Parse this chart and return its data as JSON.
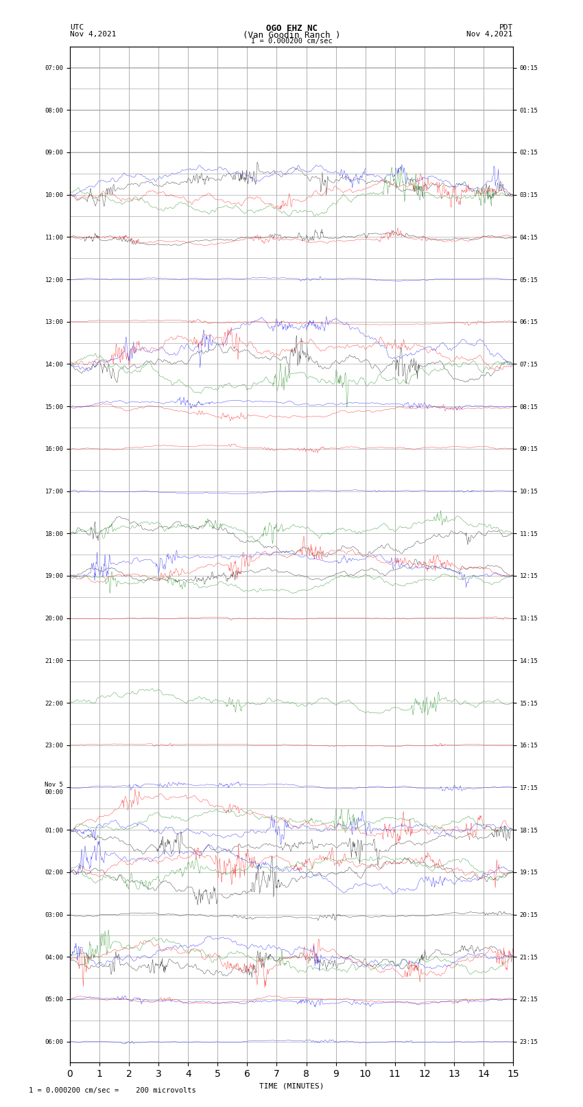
{
  "title_line1": "OGO EHZ NC",
  "title_line2": "(Van Goodin Ranch )",
  "title_line3": "I = 0.000200 cm/sec",
  "left_header_line1": "UTC",
  "left_header_line2": "Nov 4,2021",
  "right_header_line1": "PDT",
  "right_header_line2": "Nov 4,2021",
  "xlabel": "TIME (MINUTES)",
  "footer": "1 = 0.000200 cm/sec =    200 microvolts",
  "utc_times": [
    "07:00",
    "08:00",
    "09:00",
    "10:00",
    "11:00",
    "12:00",
    "13:00",
    "14:00",
    "15:00",
    "16:00",
    "17:00",
    "18:00",
    "19:00",
    "20:00",
    "21:00",
    "22:00",
    "23:00",
    "Nov 5\n00:00",
    "01:00",
    "02:00",
    "03:00",
    "04:00",
    "05:00",
    "06:00"
  ],
  "pdt_times": [
    "00:15",
    "01:15",
    "02:15",
    "03:15",
    "04:15",
    "05:15",
    "06:15",
    "07:15",
    "08:15",
    "09:15",
    "10:15",
    "11:15",
    "12:15",
    "13:15",
    "14:15",
    "15:15",
    "16:15",
    "17:15",
    "18:15",
    "19:15",
    "20:15",
    "21:15",
    "22:15",
    "23:15"
  ],
  "n_rows": 24,
  "n_minutes": 15,
  "bg_color": "white",
  "grid_color": "#aaaaaa",
  "trace_colors": {
    "black": "#000000",
    "red": "#ff0000",
    "blue": "#0000ff",
    "green": "#008000"
  },
  "active_rows": {
    "0": {
      "colors": [],
      "amplitude": 0.03
    },
    "1": {
      "colors": [],
      "amplitude": 0.03
    },
    "2": {
      "colors": [],
      "amplitude": 0.03
    },
    "3": {
      "colors": [
        "black",
        "red",
        "blue",
        "green"
      ],
      "amplitude": 0.4
    },
    "4": {
      "colors": [
        "black",
        "red"
      ],
      "amplitude": 0.15
    },
    "5": {
      "colors": [
        "blue"
      ],
      "amplitude": 0.05
    },
    "6": {
      "colors": [
        "red"
      ],
      "amplitude": 0.05
    },
    "7": {
      "colors": [
        "black",
        "red",
        "blue",
        "green"
      ],
      "amplitude": 0.5
    },
    "8": {
      "colors": [
        "red",
        "blue"
      ],
      "amplitude": 0.15
    },
    "9": {
      "colors": [
        "red"
      ],
      "amplitude": 0.08
    },
    "10": {
      "colors": [
        "blue"
      ],
      "amplitude": 0.05
    },
    "11": {
      "colors": [
        "black",
        "green"
      ],
      "amplitude": 0.4
    },
    "12": {
      "colors": [
        "black",
        "red",
        "blue",
        "green"
      ],
      "amplitude": 0.3
    },
    "13": {
      "colors": [
        "red"
      ],
      "amplitude": 0.05
    },
    "14": {
      "colors": [],
      "amplitude": 0.02
    },
    "15": {
      "colors": [
        "green"
      ],
      "amplitude": 0.35
    },
    "16": {
      "colors": [
        "red"
      ],
      "amplitude": 0.05
    },
    "17": {
      "colors": [
        "blue"
      ],
      "amplitude": 0.08
    },
    "18": {
      "colors": [
        "black",
        "red",
        "blue",
        "green"
      ],
      "amplitude": 0.4
    },
    "19": {
      "colors": [
        "black",
        "red",
        "blue",
        "green"
      ],
      "amplitude": 0.45
    },
    "20": {
      "colors": [
        "black"
      ],
      "amplitude": 0.1
    },
    "21": {
      "colors": [
        "black",
        "red",
        "blue",
        "green"
      ],
      "amplitude": 0.45
    },
    "22": {
      "colors": [
        "red",
        "blue"
      ],
      "amplitude": 0.12
    },
    "23": {
      "colors": [
        "blue"
      ],
      "amplitude": 0.05
    }
  }
}
